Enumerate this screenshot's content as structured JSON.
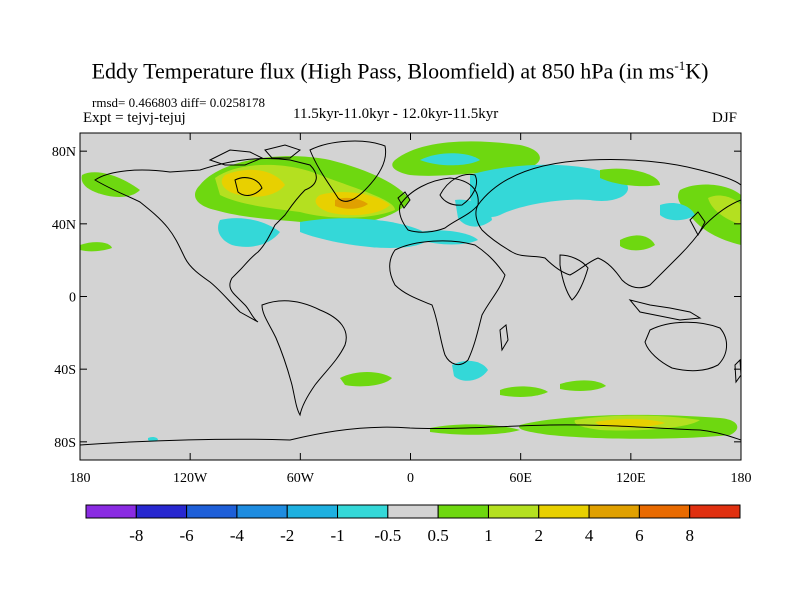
{
  "title": "Eddy Temperature flux (High Pass, Bloomfield) at 850 hPa (in ms",
  "title_sup": "-1",
  "title_tail": "K)",
  "stats": "rmsd= 0.466803  diff= 0.0258178",
  "expt": "Expt = tejvj-tejuj",
  "period": "11.5kyr-11.0kyr - 12.0kyr-11.5kyr",
  "season": "DJF",
  "map_data": {
    "type": "global contour map",
    "projection": "cylindrical equidistant",
    "lon_range": [
      -180,
      180
    ],
    "lat_range": [
      -90,
      90
    ],
    "lat_ticks": [
      {
        "value": 80,
        "label": "80N"
      },
      {
        "value": 40,
        "label": "40N"
      },
      {
        "value": 0,
        "label": "0"
      },
      {
        "value": -40,
        "label": "40S"
      },
      {
        "value": -80,
        "label": "80S"
      }
    ],
    "lon_ticks": [
      {
        "value": -180,
        "label": "180"
      },
      {
        "value": -120,
        "label": "120W"
      },
      {
        "value": -60,
        "label": "60W"
      },
      {
        "value": 0,
        "label": "0"
      },
      {
        "value": 60,
        "label": "60E"
      },
      {
        "value": 120,
        "label": "120E"
      },
      {
        "value": 180,
        "label": "180"
      }
    ],
    "background_color": "#d3d3d3"
  },
  "colorbar": {
    "levels": [
      "-8",
      "-6",
      "-4",
      "-2",
      "-1",
      "-0.5",
      "0.5",
      "1",
      "2",
      "4",
      "6",
      "8"
    ],
    "colors": [
      "#8a2be2",
      "#2828d0",
      "#1e5fd8",
      "#1e8ce0",
      "#1eb0e0",
      "#34d8d8",
      "#d3d3d3",
      "#6ed810",
      "#b4e020",
      "#e8d000",
      "#e0a000",
      "#e86a00",
      "#e03010"
    ]
  },
  "features": [
    {
      "name": "positive anomaly North Atlantic",
      "lon": -40,
      "lat": 50,
      "level": "4"
    },
    {
      "name": "positive anomaly Hudson Bay",
      "lon": -85,
      "lat": 62,
      "level": "4"
    },
    {
      "name": "negative anomaly northern Eurasia",
      "lon": 55,
      "lat": 62,
      "level": "-1"
    },
    {
      "name": "negative anomaly eastern US",
      "lon": -75,
      "lat": 35,
      "level": "-1"
    },
    {
      "name": "positive anomaly Southern Ocean",
      "lon": 115,
      "lat": -63,
      "level": "2"
    }
  ]
}
